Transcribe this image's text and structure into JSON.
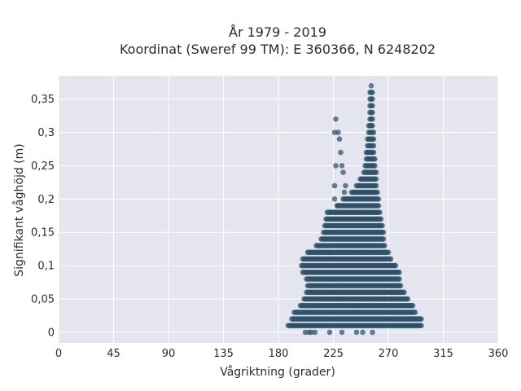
{
  "chart_data": {
    "type": "scatter",
    "title_line1": "År 1979 - 2019",
    "title_line2": "Koordinat (Sweref 99 TM): E 360366, N 6248202",
    "xlabel": "Vågriktning (grader)",
    "ylabel": "Signifikant våghöjd (m)",
    "xlim": [
      0,
      360
    ],
    "ylim": [
      -0.016,
      0.385
    ],
    "xticks": [
      0,
      45,
      90,
      135,
      180,
      225,
      270,
      315,
      360
    ],
    "xtick_labels": [
      "0",
      "45",
      "90",
      "135",
      "180",
      "225",
      "270",
      "315",
      "360"
    ],
    "yticks": [
      0,
      0.05,
      0.1,
      0.15,
      0.2,
      0.25,
      0.3,
      0.35
    ],
    "ytick_labels": [
      "0",
      "0,05",
      "0,1",
      "0,15",
      "0,2",
      "0,25",
      "0,3",
      "0,35"
    ],
    "grid": true,
    "legend": "none",
    "colors": {
      "plot_bg": "#e5e5ef",
      "grid": "#ffffff",
      "marker": "#2e5168"
    },
    "envelope": [
      {
        "y": 0.0,
        "xmin": 202,
        "xmax": 257
      },
      {
        "y": 0.01,
        "xmin": 188,
        "xmax": 297
      },
      {
        "y": 0.02,
        "xmin": 191,
        "xmax": 297
      },
      {
        "y": 0.03,
        "xmin": 193,
        "xmax": 292
      },
      {
        "y": 0.04,
        "xmin": 198,
        "xmax": 290
      },
      {
        "y": 0.05,
        "xmin": 201,
        "xmax": 286
      },
      {
        "y": 0.06,
        "xmin": 203,
        "xmax": 283
      },
      {
        "y": 0.07,
        "xmin": 204,
        "xmax": 280
      },
      {
        "y": 0.08,
        "xmin": 203,
        "xmax": 279
      },
      {
        "y": 0.09,
        "xmin": 200,
        "xmax": 279
      },
      {
        "y": 0.1,
        "xmin": 199,
        "xmax": 276
      },
      {
        "y": 0.11,
        "xmin": 200,
        "xmax": 272
      },
      {
        "y": 0.12,
        "xmin": 204,
        "xmax": 270
      },
      {
        "y": 0.13,
        "xmin": 211,
        "xmax": 267
      },
      {
        "y": 0.14,
        "xmin": 215,
        "xmax": 266
      },
      {
        "y": 0.15,
        "xmin": 217,
        "xmax": 266
      },
      {
        "y": 0.16,
        "xmin": 218,
        "xmax": 265
      },
      {
        "y": 0.17,
        "xmin": 219,
        "xmax": 264
      },
      {
        "y": 0.18,
        "xmin": 220,
        "xmax": 263
      },
      {
        "y": 0.19,
        "xmin": 228,
        "xmax": 262
      },
      {
        "y": 0.2,
        "xmin": 233,
        "xmax": 262
      },
      {
        "y": 0.21,
        "xmin": 240,
        "xmax": 261
      },
      {
        "y": 0.22,
        "xmin": 244,
        "xmax": 260
      },
      {
        "y": 0.23,
        "xmin": 247,
        "xmax": 260
      },
      {
        "y": 0.24,
        "xmin": 250,
        "xmax": 260
      },
      {
        "y": 0.25,
        "xmin": 251,
        "xmax": 259
      },
      {
        "y": 0.26,
        "xmin": 252,
        "xmax": 259
      },
      {
        "y": 0.27,
        "xmin": 252,
        "xmax": 258
      },
      {
        "y": 0.28,
        "xmin": 253,
        "xmax": 258
      },
      {
        "y": 0.29,
        "xmin": 253,
        "xmax": 258
      },
      {
        "y": 0.3,
        "xmin": 254,
        "xmax": 258
      },
      {
        "y": 0.31,
        "xmin": 254,
        "xmax": 257
      },
      {
        "y": 0.32,
        "xmin": 255,
        "xmax": 257
      },
      {
        "y": 0.33,
        "xmin": 255,
        "xmax": 257
      },
      {
        "y": 0.34,
        "xmin": 255,
        "xmax": 257
      },
      {
        "y": 0.35,
        "xmin": 255,
        "xmax": 257
      },
      {
        "y": 0.36,
        "xmin": 255,
        "xmax": 257
      },
      {
        "y": 0.37,
        "xmin": 256,
        "xmax": 256
      }
    ],
    "outliers": [
      {
        "x": 227,
        "y": 0.32
      },
      {
        "x": 226,
        "y": 0.3
      },
      {
        "x": 229,
        "y": 0.3
      },
      {
        "x": 230,
        "y": 0.29
      },
      {
        "x": 231,
        "y": 0.27
      },
      {
        "x": 227,
        "y": 0.25
      },
      {
        "x": 232,
        "y": 0.25
      },
      {
        "x": 233,
        "y": 0.24
      },
      {
        "x": 226,
        "y": 0.22
      },
      {
        "x": 235,
        "y": 0.22
      },
      {
        "x": 234,
        "y": 0.21
      },
      {
        "x": 226,
        "y": 0.2
      },
      {
        "x": 229,
        "y": 0.19
      },
      {
        "x": 202,
        "y": 0.0
      },
      {
        "x": 205,
        "y": 0.0
      },
      {
        "x": 207,
        "y": 0.0
      },
      {
        "x": 210,
        "y": 0.0
      },
      {
        "x": 222,
        "y": 0.0
      },
      {
        "x": 232,
        "y": 0.0
      },
      {
        "x": 244,
        "y": 0.0
      },
      {
        "x": 249,
        "y": 0.0
      },
      {
        "x": 257,
        "y": 0.0
      }
    ]
  }
}
